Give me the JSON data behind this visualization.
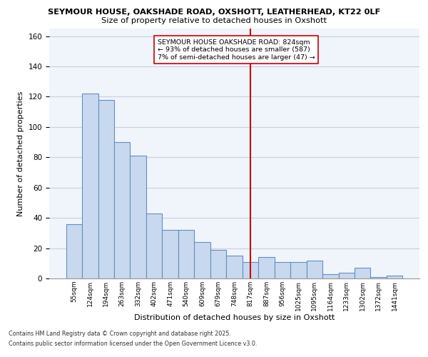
{
  "title1": "SEYMOUR HOUSE, OAKSHADE ROAD, OXSHOTT, LEATHERHEAD, KT22 0LF",
  "title2": "Size of property relative to detached houses in Oxshott",
  "xlabel": "Distribution of detached houses by size in Oxshott",
  "ylabel": "Number of detached properties",
  "categories": [
    "55sqm",
    "124sqm",
    "194sqm",
    "263sqm",
    "332sqm",
    "402sqm",
    "471sqm",
    "540sqm",
    "609sqm",
    "679sqm",
    "748sqm",
    "817sqm",
    "887sqm",
    "956sqm",
    "1025sqm",
    "1095sqm",
    "1164sqm",
    "1233sqm",
    "1302sqm",
    "1372sqm",
    "1441sqm"
  ],
  "values": [
    36,
    122,
    118,
    90,
    81,
    43,
    32,
    32,
    24,
    19,
    15,
    11,
    14,
    11,
    11,
    12,
    3,
    4,
    7,
    1,
    2
  ],
  "bar_color": "#c8d8ee",
  "bar_edge_color": "#6090c0",
  "vline_index": 11,
  "vline_color": "#cc0000",
  "annotation_line1": "SEYMOUR HOUSE OAKSHADE ROAD: 824sqm",
  "annotation_line2": "← 93% of detached houses are smaller (587)",
  "annotation_line3": "7% of semi-detached houses are larger (47) →",
  "ylim": [
    0,
    165
  ],
  "yticks": [
    0,
    20,
    40,
    60,
    80,
    100,
    120,
    140,
    160
  ],
  "footnote1": "Contains HM Land Registry data © Crown copyright and database right 2025.",
  "footnote2": "Contains public sector information licensed under the Open Government Licence v3.0.",
  "bg_color": "#f0f4fb",
  "grid_color": "#c8cfe0"
}
